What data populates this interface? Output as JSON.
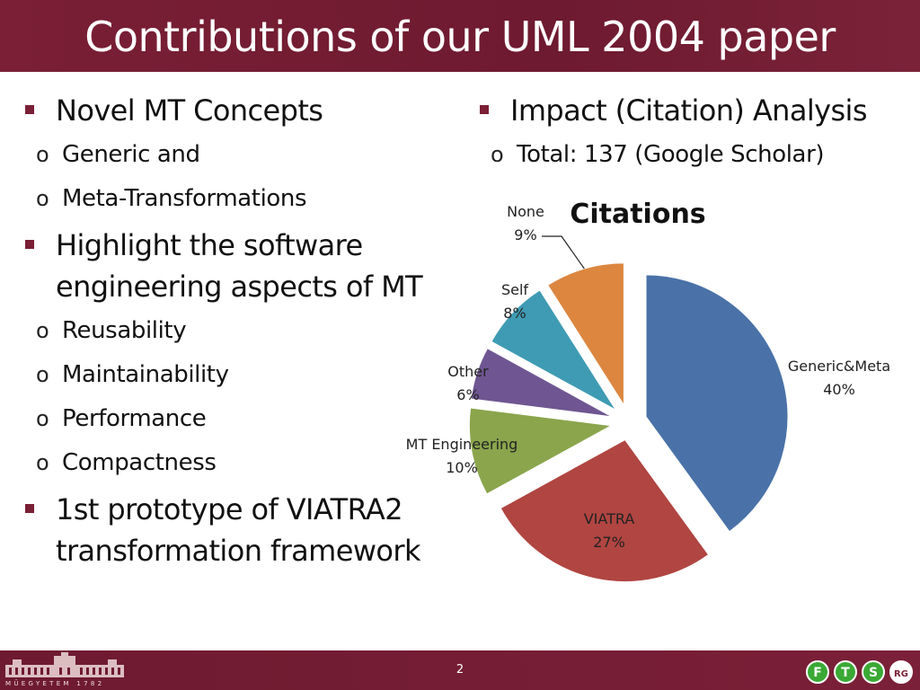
{
  "slide": {
    "title": "Contributions of our UML 2004 paper",
    "page_number": "2",
    "footer_logo_text": "MŰEGYETEM 1782"
  },
  "left": {
    "items": [
      {
        "text": "Novel MT Concepts",
        "sub": [
          "Generic and",
          "Meta-Transformations"
        ]
      },
      {
        "text": "Highlight the software engineering aspects of MT",
        "sub": [
          "Reusability",
          "Maintainability",
          "Performance",
          "Compactness"
        ]
      },
      {
        "text": "1st prototype of VIATRA2 transformation framework",
        "sub": []
      }
    ]
  },
  "right": {
    "items": [
      {
        "text": "Impact (Citation) Analysis",
        "sub": [
          "Total: 137 (Google Scholar)"
        ]
      }
    ]
  },
  "logos": {
    "ftsrg_letters": [
      "F",
      "T",
      "S",
      "RG"
    ],
    "ftsrg_colors": [
      "#3aa935",
      "#3aa935",
      "#3aa935",
      "#3aa935"
    ]
  },
  "colors": {
    "accent": "#7a1f35"
  },
  "chart_data": {
    "type": "pie",
    "title": "Citations",
    "exploded": true,
    "categories": [
      "Generic&Meta",
      "VIATRA",
      "MT Engineering",
      "Other",
      "Self",
      "None"
    ],
    "values": [
      40,
      27,
      10,
      6,
      8,
      9
    ],
    "labels": [
      "40%",
      "27%",
      "10%",
      "6%",
      "8%",
      "9%"
    ],
    "colors": [
      "#4a72a8",
      "#b04541",
      "#8aa54c",
      "#6f5692",
      "#3f9bb3",
      "#dc8640"
    ]
  }
}
